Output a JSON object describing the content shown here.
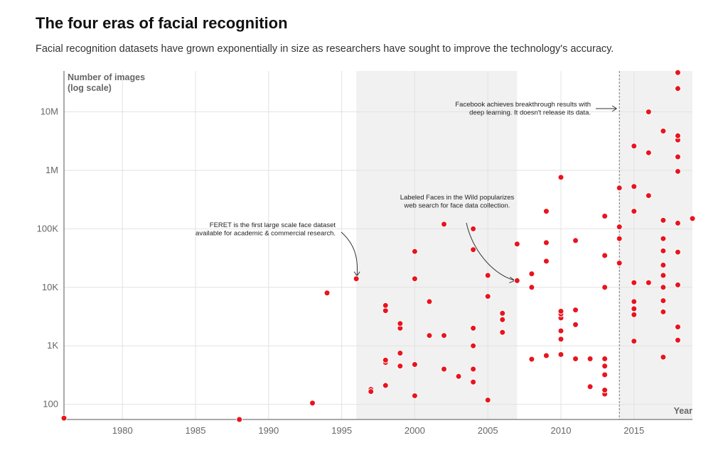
{
  "title": "The four eras of facial recognition",
  "subtitle": "Facial recognition datasets have grown exponentially in size as researchers have sought to improve the technology's accuracy.",
  "colors": {
    "point": "#e8141e",
    "era_shade": "#f1f1f1",
    "grid": "#e2e2e2",
    "axis": "#555555"
  },
  "chart_data": {
    "type": "scatter",
    "ylabel": [
      "Number of images",
      "(log scale)"
    ],
    "xlabel": "Year",
    "xlim": [
      1976,
      2019
    ],
    "ylim": [
      55,
      50000000
    ],
    "y_scale": "log",
    "grid": true,
    "x_ticks": [
      1980,
      1985,
      1990,
      1995,
      2000,
      2005,
      2010,
      2015
    ],
    "x_tick_labels": [
      "1980",
      "1985",
      "1990",
      "1995",
      "2000",
      "2005",
      "2010",
      "2015"
    ],
    "y_ticks": [
      100,
      1000,
      10000,
      100000,
      1000000,
      10000000
    ],
    "y_tick_labels": [
      "100",
      "1K",
      "10K",
      "100K",
      "1M",
      "10M"
    ],
    "shaded_eras": [
      [
        1996,
        2007
      ],
      [
        2014,
        2019
      ]
    ],
    "reference_line": 2014,
    "annotations": [
      {
        "lines": [
          "FERET is the first large scale face dataset",
          "available for academic & commercial research."
        ],
        "target": [
          1996,
          14000
        ]
      },
      {
        "lines": [
          "Labeled Faces in the Wild popularizes",
          "web search for face data collection."
        ],
        "target": [
          2007,
          13000
        ]
      },
      {
        "lines": [
          "Facebook achieves breakthrough results with",
          "deep learning. It doesn't release its data."
        ],
        "target": [
          2014,
          10000000
        ]
      }
    ],
    "points": [
      [
        1976,
        58
      ],
      [
        1988,
        55
      ],
      [
        1993,
        105
      ],
      [
        1994,
        8000
      ],
      [
        1996,
        14000
      ],
      [
        1997,
        180
      ],
      [
        1997,
        165
      ],
      [
        1998,
        210
      ],
      [
        1998,
        520
      ],
      [
        1998,
        570
      ],
      [
        1998,
        4000
      ],
      [
        1998,
        4900
      ],
      [
        1999,
        450
      ],
      [
        1999,
        750
      ],
      [
        1999,
        2000
      ],
      [
        1999,
        2400
      ],
      [
        2000,
        140
      ],
      [
        2000,
        480
      ],
      [
        2000,
        14000
      ],
      [
        2000,
        41000
      ],
      [
        2001,
        1500
      ],
      [
        2001,
        5700
      ],
      [
        2002,
        400
      ],
      [
        2002,
        1500
      ],
      [
        2002,
        120000
      ],
      [
        2003,
        300
      ],
      [
        2004,
        240
      ],
      [
        2004,
        400
      ],
      [
        2004,
        1000
      ],
      [
        2004,
        2000
      ],
      [
        2004,
        44000
      ],
      [
        2004,
        100000
      ],
      [
        2005,
        118
      ],
      [
        2005,
        7000
      ],
      [
        2005,
        16000
      ],
      [
        2006,
        1700
      ],
      [
        2006,
        2800
      ],
      [
        2006,
        3600
      ],
      [
        2007,
        13000
      ],
      [
        2007,
        55000
      ],
      [
        2008,
        590
      ],
      [
        2008,
        10000
      ],
      [
        2008,
        17000
      ],
      [
        2009,
        680
      ],
      [
        2009,
        28000
      ],
      [
        2009,
        58000
      ],
      [
        2009,
        200000
      ],
      [
        2010,
        710
      ],
      [
        2010,
        1300
      ],
      [
        2010,
        1800
      ],
      [
        2010,
        3000
      ],
      [
        2010,
        3500
      ],
      [
        2010,
        3900
      ],
      [
        2010,
        760000
      ],
      [
        2011,
        600
      ],
      [
        2011,
        2300
      ],
      [
        2011,
        4100
      ],
      [
        2011,
        63000
      ],
      [
        2012,
        200
      ],
      [
        2012,
        600
      ],
      [
        2013,
        150
      ],
      [
        2013,
        175
      ],
      [
        2013,
        320
      ],
      [
        2013,
        450
      ],
      [
        2013,
        600
      ],
      [
        2013,
        10000
      ],
      [
        2013,
        35000
      ],
      [
        2013,
        165000
      ],
      [
        2014,
        26000
      ],
      [
        2014,
        68000
      ],
      [
        2014,
        108000
      ],
      [
        2014,
        500000
      ],
      [
        2015,
        1200
      ],
      [
        2015,
        3400
      ],
      [
        2015,
        4300
      ],
      [
        2015,
        5700
      ],
      [
        2015,
        12000
      ],
      [
        2015,
        200000
      ],
      [
        2015,
        530000
      ],
      [
        2015,
        2600000
      ],
      [
        2016,
        12000
      ],
      [
        2016,
        370000
      ],
      [
        2016,
        2000000
      ],
      [
        2016,
        10000000
      ],
      [
        2017,
        640
      ],
      [
        2017,
        3800
      ],
      [
        2017,
        5900
      ],
      [
        2017,
        10000
      ],
      [
        2017,
        16000
      ],
      [
        2017,
        24000
      ],
      [
        2017,
        42000
      ],
      [
        2017,
        68000
      ],
      [
        2017,
        140000
      ],
      [
        2017,
        4700000
      ],
      [
        2018,
        1250
      ],
      [
        2018,
        2100
      ],
      [
        2018,
        11000
      ],
      [
        2018,
        40000
      ],
      [
        2018,
        125000
      ],
      [
        2018,
        960000
      ],
      [
        2018,
        1700000
      ],
      [
        2018,
        3300000
      ],
      [
        2018,
        3900000
      ],
      [
        2018,
        25000000
      ],
      [
        2018,
        47000000
      ],
      [
        2019,
        150000
      ]
    ]
  }
}
